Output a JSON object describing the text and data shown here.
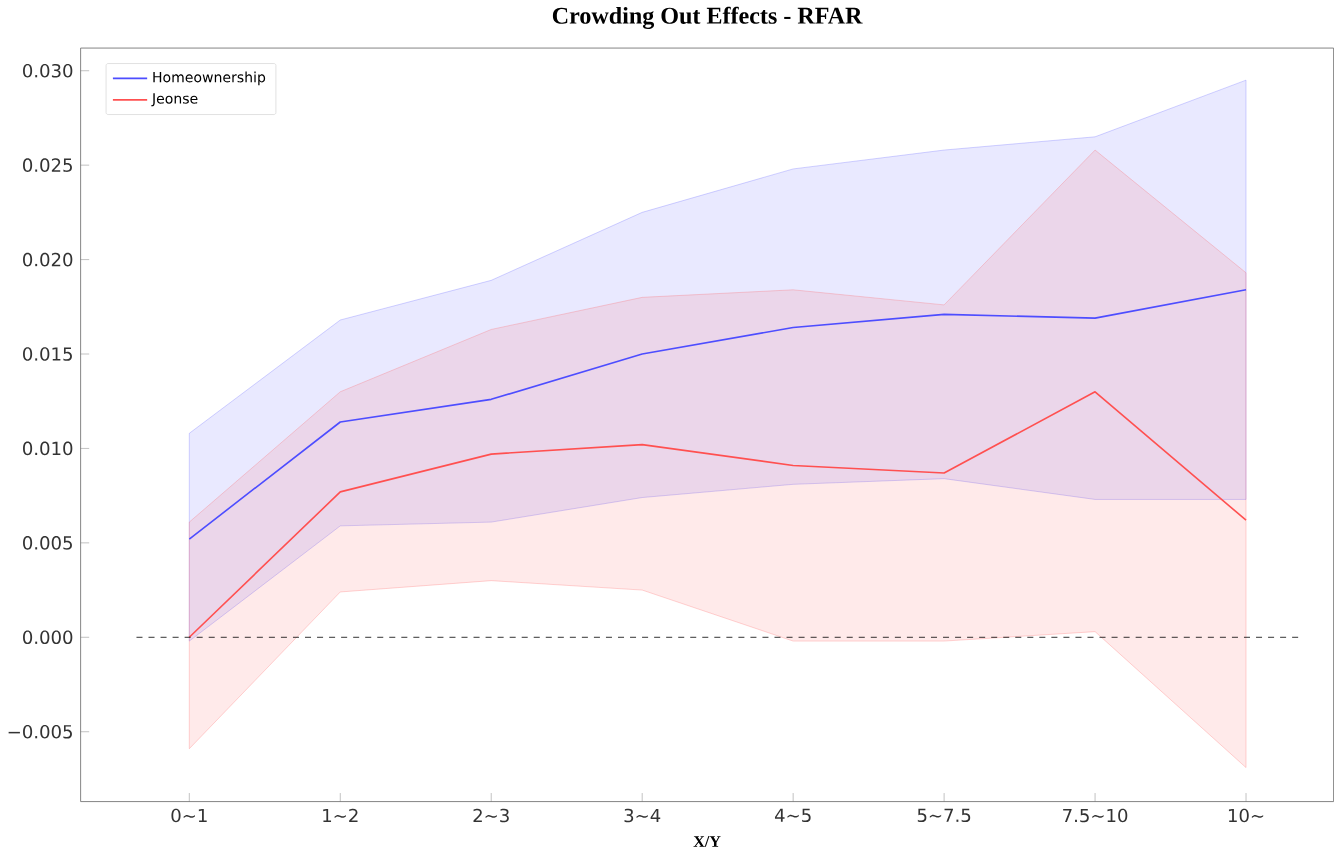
{
  "chart_data": {
    "type": "line",
    "title": "Crowding Out Effects - RFAR",
    "xlabel": "X/Y",
    "categories": [
      "0~1",
      "1~2",
      "2~3",
      "3~4",
      "4~5",
      "5~7.5",
      "7.5~10",
      "10~"
    ],
    "series": [
      {
        "name": "Homeownership",
        "color": "#4d4dff",
        "values": [
          0.0052,
          0.0114,
          0.0126,
          0.015,
          0.0164,
          0.0171,
          0.0169,
          0.0184
        ],
        "lower": [
          -0.0002,
          0.0059,
          0.0061,
          0.0074,
          0.0081,
          0.0084,
          0.0073,
          0.0073
        ],
        "upper": [
          0.0108,
          0.0168,
          0.0189,
          0.0225,
          0.0248,
          0.0258,
          0.0265,
          0.0295
        ]
      },
      {
        "name": "Jeonse",
        "color": "#ff5050",
        "values": [
          0.0,
          0.0077,
          0.0097,
          0.0102,
          0.0091,
          0.0087,
          0.013,
          0.0062
        ],
        "lower": [
          -0.0059,
          0.0024,
          0.003,
          0.0025,
          -0.0002,
          -0.0002,
          0.0003,
          -0.0069
        ],
        "upper": [
          0.0061,
          0.013,
          0.0163,
          0.018,
          0.0184,
          0.0176,
          0.0258,
          0.0193
        ]
      }
    ],
    "ylim": [
      -0.0087,
      0.0312
    ],
    "yticks": [
      {
        "value": -0.005,
        "label": "−0.005"
      },
      {
        "value": 0,
        "label": "0.000"
      },
      {
        "value": 0.005,
        "label": "0.005"
      },
      {
        "value": 0.01,
        "label": "0.010"
      },
      {
        "value": 0.015,
        "label": "0.015"
      },
      {
        "value": 0.02,
        "label": "0.020"
      },
      {
        "value": 0.025,
        "label": "0.025"
      },
      {
        "value": 0.03,
        "label": "0.030"
      }
    ],
    "ref_lines": [
      {
        "axis": "y",
        "value": 0,
        "color": "#000000",
        "line_style": "dashed"
      }
    ],
    "legend": "top left",
    "grid": false,
    "line_style": "solid",
    "marker": "none"
  }
}
